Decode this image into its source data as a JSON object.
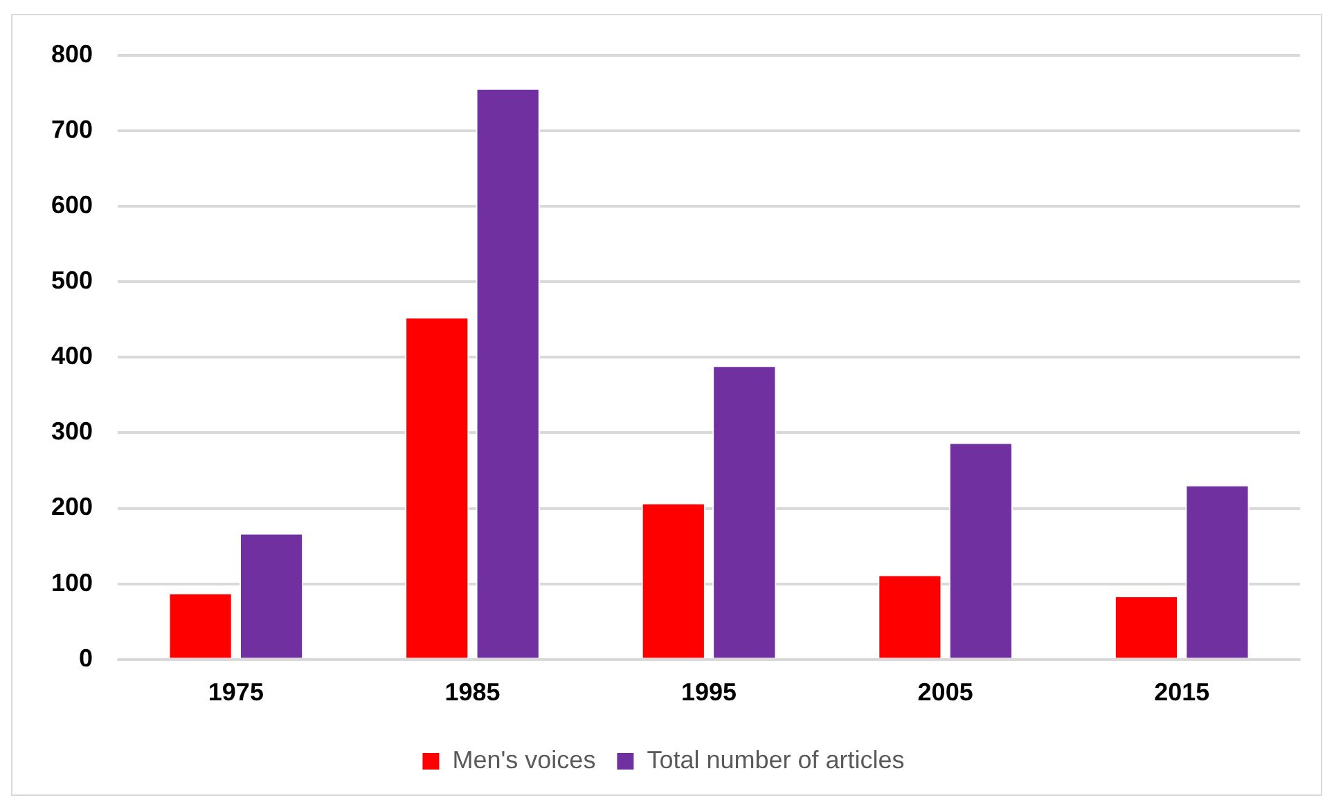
{
  "chart_data": {
    "type": "bar",
    "categories": [
      "1975",
      "1985",
      "1995",
      "2005",
      "2015"
    ],
    "series": [
      {
        "name": "Men's voices",
        "color": "#ff0000",
        "values": [
          88,
          453,
          207,
          112,
          84
        ]
      },
      {
        "name": "Total number of articles",
        "color": "#7030a0",
        "values": [
          167,
          756,
          389,
          287,
          231
        ]
      }
    ],
    "ylim": [
      0,
      800
    ],
    "yticks": [
      0,
      100,
      200,
      300,
      400,
      500,
      600,
      700,
      800
    ],
    "grid": "y",
    "legend": "bottom"
  }
}
